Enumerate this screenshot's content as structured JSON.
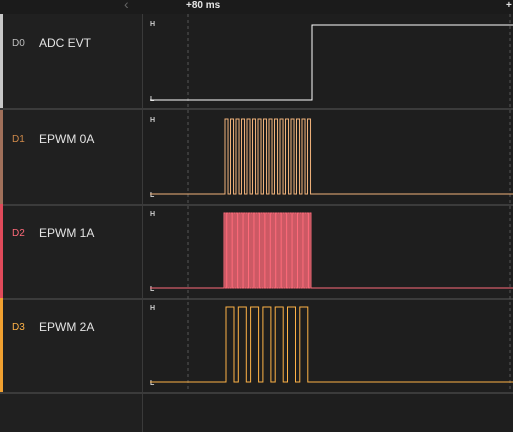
{
  "ruler": {
    "collapse_icon": "chevron-left-icon",
    "time_marker": "+80 ms",
    "time_marker_right": "+"
  },
  "channels": [
    {
      "id": "D0",
      "name": "ADC EVT",
      "color": "#ffffff",
      "bar_color": "#c8c8c8",
      "id_color": "#bfbfbf",
      "high_label": "H",
      "low_label": "L"
    },
    {
      "id": "D1",
      "name": "EPWM 0A",
      "color": "#f0b27a",
      "bar_color": "#a0705a",
      "id_color": "#d08a4a",
      "high_label": "H",
      "low_label": "L"
    },
    {
      "id": "D2",
      "name": "EPWM 1A",
      "color": "#ff6b7a",
      "bar_color": "#e04a5a",
      "id_color": "#ff6b7a",
      "high_label": "H",
      "low_label": "L"
    },
    {
      "id": "D3",
      "name": "EPWM 2A",
      "color": "#ffb347",
      "bar_color": "#f0a030",
      "id_color": "#ffb347",
      "high_label": "H",
      "low_label": "L"
    }
  ]
}
